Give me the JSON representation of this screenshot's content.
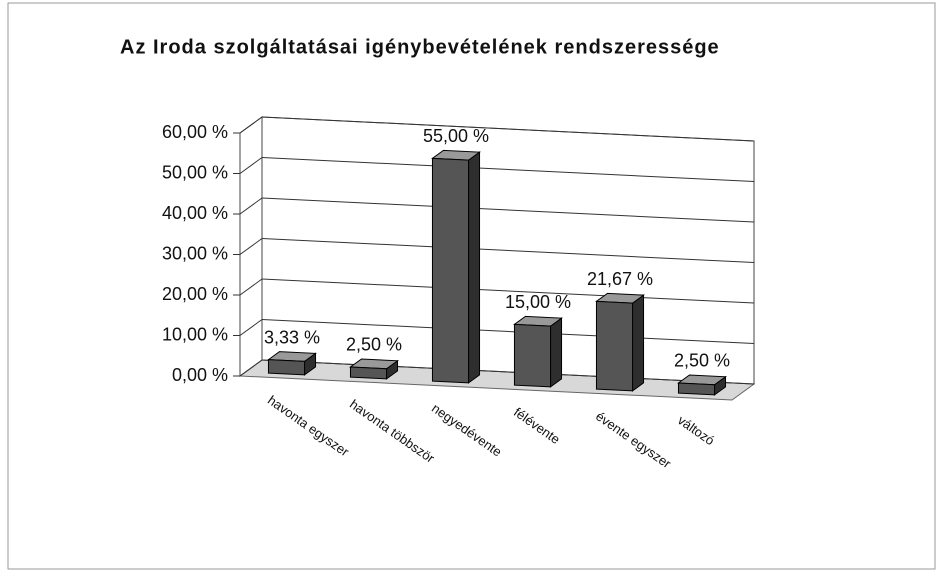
{
  "chart_data": {
    "type": "bar3d",
    "title": "Az Iroda szolgáltatásai igénybevételének rendszeressége",
    "categories": [
      "havonta egyszer",
      "havonta többször",
      "negyedévente",
      "félévente",
      "évente egyszer",
      "változó"
    ],
    "values": [
      3.33,
      2.5,
      55,
      15,
      21.67,
      2.5
    ],
    "value_labels": [
      "3,33 %",
      "2,50 %",
      "55,00 %",
      "15,00 %",
      "21,67 %",
      "2,50 %"
    ],
    "color": "#555555",
    "ylim": [
      0,
      60
    ],
    "yticks": [
      {
        "value": 0,
        "label": "0,00 %"
      },
      {
        "value": 10,
        "label": "10,00 %"
      },
      {
        "value": 20,
        "label": "20,00 %"
      },
      {
        "value": 30,
        "label": "30,00 %"
      },
      {
        "value": 40,
        "label": "40,00 %"
      },
      {
        "value": 50,
        "label": "50,00 %"
      },
      {
        "value": 60,
        "label": "60,00 %"
      }
    ],
    "grid": true
  }
}
